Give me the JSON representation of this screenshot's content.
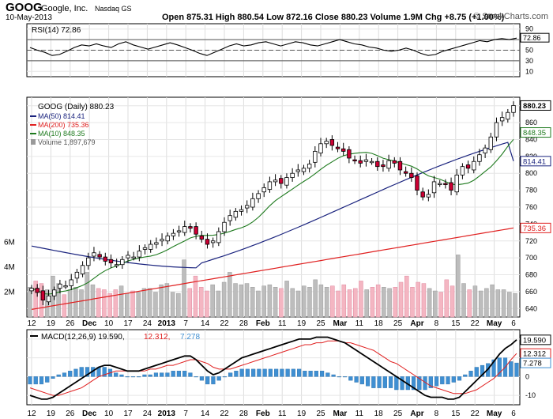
{
  "header": {
    "symbol": "GOOG",
    "company": "Google, Inc.",
    "exchange": "Nasdaq GS",
    "date": "10-May-2013",
    "quote": "Open 875.31  High 880.54  Low 872.16  Close 880.23  Volume 1.9M  Chg +8.75 (+1.00%)",
    "watermark": "© StockCharts.com"
  },
  "colors": {
    "up": "#ffffff",
    "down": "#cc0033",
    "ma50": "#1a237e",
    "ma200": "#e02020",
    "ma10": "#1e7a1e",
    "volume_gray": "#bdbdbd",
    "volume_pink": "#f4b6c2",
    "macd_line": "#000000",
    "signal_line": "#e02020",
    "histogram": "#3f8fd2",
    "rsi_line": "#000000"
  },
  "chart_data": [
    {
      "type": "line",
      "name": "rsi-panel",
      "title": "RSI(14) 72.86",
      "ylim": [
        0,
        100
      ],
      "reference_levels": [
        70,
        50,
        30
      ],
      "y_ticks": [
        "90",
        "70",
        "50",
        "30",
        "10"
      ],
      "last_value_label": "72.86",
      "values": [
        55,
        50,
        46,
        40,
        42,
        48,
        55,
        60,
        58,
        62,
        58,
        55,
        62,
        66,
        60,
        56,
        52,
        56,
        60,
        64,
        60,
        55,
        50,
        44,
        40,
        46,
        52,
        58,
        62,
        58,
        60,
        64,
        66,
        62,
        58,
        62,
        66,
        64,
        60,
        58,
        62,
        66,
        70,
        66,
        62,
        60,
        56,
        54,
        50,
        48,
        50,
        54,
        50,
        44,
        40,
        42,
        48,
        52,
        56,
        60,
        64,
        68,
        66,
        70,
        72,
        70,
        72.86
      ]
    },
    {
      "type": "candlestick",
      "name": "price-panel",
      "title": "GOOG (Daily) 880.23",
      "ylim": [
        630,
        890
      ],
      "y_ticks": [
        "880",
        "860",
        "840",
        "820",
        "800",
        "780",
        "760",
        "740",
        "720",
        "700",
        "680",
        "660",
        "640"
      ],
      "x_tick_labels": [
        "12",
        "19",
        "26",
        "Dec",
        "10",
        "17",
        "24",
        "2013",
        "7",
        "14",
        "22",
        "28",
        "Feb",
        "11",
        "19",
        "25",
        "Mar",
        "11",
        "18",
        "25",
        "Apr",
        "8",
        "15",
        "22",
        "May",
        "6"
      ],
      "legend": [
        {
          "label": "GOOG (Daily) 880.23",
          "color": "#000000"
        },
        {
          "label": "MA(50) 814.41",
          "color": "#1a237e"
        },
        {
          "label": "MA(200) 735.36",
          "color": "#e02020"
        },
        {
          "label": "MA(10) 848.35",
          "color": "#1e7a1e"
        },
        {
          "label": "Volume 1,897,679",
          "color": "#808080"
        }
      ],
      "last_price_tags": [
        {
          "label": "880.23",
          "value": 880.23,
          "color": "#000000"
        },
        {
          "label": "848.35",
          "value": 848.35,
          "color": "#1e7a1e"
        },
        {
          "label": "814.41",
          "value": 814.41,
          "color": "#1a237e"
        },
        {
          "label": "735.36",
          "value": 735.36,
          "color": "#e02020"
        }
      ],
      "close": [
        664,
        659,
        650,
        655,
        662,
        669,
        667,
        674,
        683,
        691,
        700,
        706,
        701,
        696,
        694,
        692,
        698,
        703,
        701,
        708,
        712,
        716,
        718,
        722,
        726,
        729,
        732,
        737,
        735,
        728,
        722,
        716,
        720,
        731,
        742,
        750,
        755,
        757,
        762,
        770,
        776,
        783,
        790,
        792,
        788,
        795,
        800,
        804,
        806,
        811,
        826,
        835,
        838,
        833,
        829,
        826,
        818,
        815,
        812,
        816,
        814,
        808,
        808,
        815,
        812,
        804,
        800,
        795,
        780,
        772,
        775,
        790,
        788,
        787,
        780,
        798,
        808,
        806,
        814,
        822,
        830,
        843,
        860,
        866,
        872,
        880.23
      ],
      "ma50_end": 814.41,
      "ma200_end": 735.36,
      "ma10_end": 848.35
    },
    {
      "type": "bar",
      "name": "volume-panel",
      "y_ticks": [
        "6M",
        "4M",
        "2M"
      ],
      "ylim": [
        0,
        7
      ],
      "values": [
        2.4,
        2.9,
        2.7,
        2.2,
        3.3,
        2.7,
        1.8,
        2.2,
        2.4,
        2.2,
        3.6,
        2.6,
        2.3,
        2.2,
        1.9,
        2.2,
        2.5,
        1.9,
        2.1,
        2.0,
        2.3,
        2.3,
        2.0,
        2.6,
        2.7,
        2.0,
        1.9,
        4.6,
        2.3,
        3.3,
        2.4,
        2.1,
        2.6,
        2.1,
        2.8,
        3.6,
        2.7,
        2.6,
        2.7,
        2.4,
        2.1,
        2.5,
        2.6,
        2.4,
        2.3,
        2.9,
        2.3,
        2.1,
        2.5,
        2.4,
        3.0,
        2.6,
        2.4,
        2.5,
        2.1,
        2.6,
        2.2,
        2.3,
        2.9,
        2.2,
        2.4,
        2.6,
        2.4,
        2.3,
        2.4,
        2.8,
        3.3,
        2.4,
        2.8,
        2.7,
        2.3,
        2.1,
        2.0,
        3.0,
        2.5,
        5.0,
        2.7,
        2.2,
        2.5,
        2.1,
        2.3,
        2.6,
        2.2,
        2.2,
        2.0,
        1.9
      ]
    },
    {
      "type": "line",
      "name": "macd-panel",
      "title": "MACD(12,26,9) 19.590, 12.312, 7.278",
      "legend": [
        {
          "label": "MACD(12,26,9) 19.590,",
          "color": "#000000"
        },
        {
          "label": "12.312,",
          "color": "#e02020"
        },
        {
          "label": "7.278",
          "color": "#3f8fd2"
        }
      ],
      "ylim": [
        -15,
        25
      ],
      "y_ticks": [
        "20",
        "10",
        "0",
        "-10"
      ],
      "last_value_labels": [
        {
          "label": "19.590",
          "value": 19.59
        },
        {
          "label": "12.312",
          "value": 12.312
        },
        {
          "label": "7.278",
          "value": 7.278
        }
      ],
      "macd": [
        -10,
        -11,
        -12,
        -12,
        -11,
        -9,
        -7,
        -5,
        -3,
        -1,
        1,
        3,
        5,
        6,
        6,
        5,
        4,
        3,
        3,
        3,
        4,
        5,
        6,
        7,
        8,
        9,
        10,
        11,
        11,
        9,
        6,
        3,
        1,
        2,
        4,
        6,
        8,
        10,
        11,
        12,
        13,
        14,
        15,
        16,
        17,
        18,
        19,
        20,
        20,
        20,
        21,
        21,
        21,
        20,
        19,
        18,
        16,
        14,
        12,
        10,
        8,
        6,
        4,
        2,
        0,
        -2,
        -4,
        -6,
        -8,
        -10,
        -11,
        -11,
        -11,
        -12,
        -12,
        -11,
        -8,
        -5,
        -2,
        1,
        4,
        8,
        12,
        15,
        17,
        19.59
      ],
      "signal": [
        -6,
        -7,
        -8,
        -9,
        -10,
        -10,
        -9,
        -8,
        -7,
        -6,
        -4,
        -2,
        0,
        1,
        2,
        3,
        3,
        3,
        3,
        3,
        3,
        4,
        4,
        5,
        6,
        6,
        7,
        8,
        9,
        9,
        8,
        7,
        5,
        4,
        4,
        4,
        5,
        6,
        7,
        8,
        9,
        10,
        11,
        12,
        13,
        14,
        15,
        16,
        17,
        17,
        18,
        18,
        19,
        19,
        19,
        18,
        18,
        17,
        16,
        15,
        14,
        12,
        10,
        8,
        7,
        5,
        3,
        1,
        -1,
        -3,
        -5,
        -6,
        -7,
        -8,
        -9,
        -9,
        -9,
        -8,
        -7,
        -5,
        -3,
        -1,
        2,
        5,
        9,
        12.312
      ]
    },
    {
      "type": "axis",
      "name": "bottom-axis",
      "x_tick_labels": [
        "12",
        "19",
        "26",
        "Dec",
        "10",
        "17",
        "24",
        "2013",
        "7",
        "14",
        "22",
        "28",
        "Feb",
        "11",
        "19",
        "25",
        "Mar",
        "11",
        "18",
        "25",
        "Apr",
        "8",
        "15",
        "22",
        "May",
        "6"
      ]
    }
  ]
}
